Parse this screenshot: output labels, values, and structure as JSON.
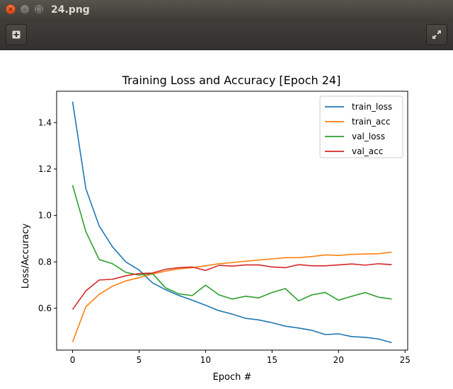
{
  "window": {
    "title": "24.png",
    "close_glyph": "×",
    "minimize_glyph": "–",
    "maximize_glyph": "□"
  },
  "toolbar": {
    "left_icon": "add-icon",
    "right_icon": "fullscreen-icon"
  },
  "chart_data": {
    "type": "line",
    "title": "Training Loss and Accuracy [Epoch 24]",
    "xlabel": "Epoch #",
    "ylabel": "Loss/Accuracy",
    "xlim": [
      -1.2,
      25.2
    ],
    "ylim": [
      0.42,
      1.535
    ],
    "xticks": [
      0,
      5,
      10,
      15,
      20,
      25
    ],
    "yticks": [
      0.6,
      0.8,
      1.0,
      1.2,
      1.4
    ],
    "ytick_labels": [
      "0.6",
      "0.8",
      "1.0",
      "1.2",
      "1.4"
    ],
    "grid": false,
    "legend_position": "top-right",
    "x": [
      0,
      1,
      2,
      3,
      4,
      5,
      6,
      7,
      8,
      9,
      10,
      11,
      12,
      13,
      14,
      15,
      16,
      17,
      18,
      19,
      20,
      21,
      22,
      23,
      24
    ],
    "series": [
      {
        "name": "train_loss",
        "color": "#1f77b4",
        "values": [
          1.49,
          1.115,
          0.955,
          0.865,
          0.8,
          0.765,
          0.71,
          0.68,
          0.655,
          0.635,
          0.613,
          0.59,
          0.575,
          0.557,
          0.55,
          0.538,
          0.523,
          0.515,
          0.505,
          0.487,
          0.49,
          0.478,
          0.475,
          0.468,
          0.452
        ]
      },
      {
        "name": "train_acc",
        "color": "#ff7f0e",
        "values": [
          0.455,
          0.607,
          0.66,
          0.695,
          0.718,
          0.732,
          0.748,
          0.76,
          0.77,
          0.775,
          0.783,
          0.792,
          0.797,
          0.803,
          0.808,
          0.813,
          0.818,
          0.818,
          0.823,
          0.83,
          0.828,
          0.832,
          0.834,
          0.835,
          0.842
        ]
      },
      {
        "name": "val_loss",
        "color": "#2ca02c",
        "values": [
          1.13,
          0.93,
          0.81,
          0.792,
          0.755,
          0.743,
          0.75,
          0.688,
          0.662,
          0.655,
          0.7,
          0.658,
          0.64,
          0.652,
          0.645,
          0.668,
          0.685,
          0.632,
          0.658,
          0.668,
          0.635,
          0.652,
          0.668,
          0.648,
          0.64
        ]
      },
      {
        "name": "val_acc",
        "color": "#d62728",
        "values": [
          0.595,
          0.675,
          0.722,
          0.725,
          0.74,
          0.75,
          0.752,
          0.768,
          0.775,
          0.778,
          0.763,
          0.785,
          0.782,
          0.787,
          0.787,
          0.778,
          0.775,
          0.788,
          0.783,
          0.783,
          0.787,
          0.791,
          0.786,
          0.792,
          0.788
        ]
      }
    ]
  }
}
